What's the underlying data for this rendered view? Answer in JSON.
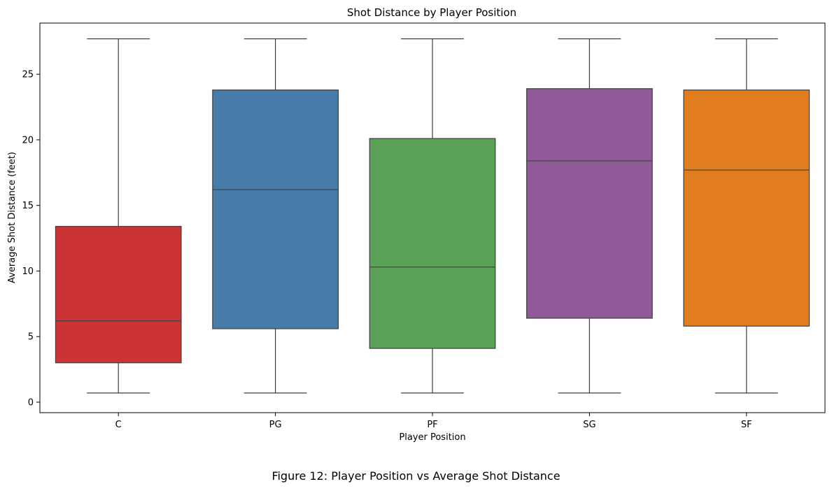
{
  "figure": {
    "caption": "Figure 12: Player Position vs Average Shot Distance"
  },
  "chart_data": {
    "type": "box",
    "title": "Shot Distance by Player Position",
    "xlabel": "Player Position",
    "ylabel": "Average Shot Distance (feet)",
    "ylim": [
      -0.8,
      28.9
    ],
    "yticks": [
      0,
      5,
      10,
      15,
      20,
      25
    ],
    "grid": false,
    "legend": "none",
    "categories": [
      "C",
      "PG",
      "PF",
      "SG",
      "SF"
    ],
    "boxes": [
      {
        "category": "C",
        "whisker_low": 0.7,
        "q1": 3.0,
        "median": 6.2,
        "q3": 13.4,
        "whisker_high": 27.7,
        "color": "#CC3335"
      },
      {
        "category": "PG",
        "whisker_low": 0.7,
        "q1": 5.6,
        "median": 16.2,
        "q3": 23.8,
        "whisker_high": 27.7,
        "color": "#477CA8"
      },
      {
        "category": "PF",
        "whisker_low": 0.7,
        "q1": 4.1,
        "median": 10.3,
        "q3": 20.1,
        "whisker_high": 27.7,
        "color": "#59A257"
      },
      {
        "category": "SG",
        "whisker_low": 0.7,
        "q1": 6.4,
        "median": 18.4,
        "q3": 23.9,
        "whisker_high": 27.7,
        "color": "#8F5A97"
      },
      {
        "category": "SF",
        "whisker_low": 0.7,
        "q1": 5.8,
        "median": 17.7,
        "q3": 23.8,
        "whisker_high": 27.7,
        "color": "#E07E1F"
      }
    ]
  }
}
